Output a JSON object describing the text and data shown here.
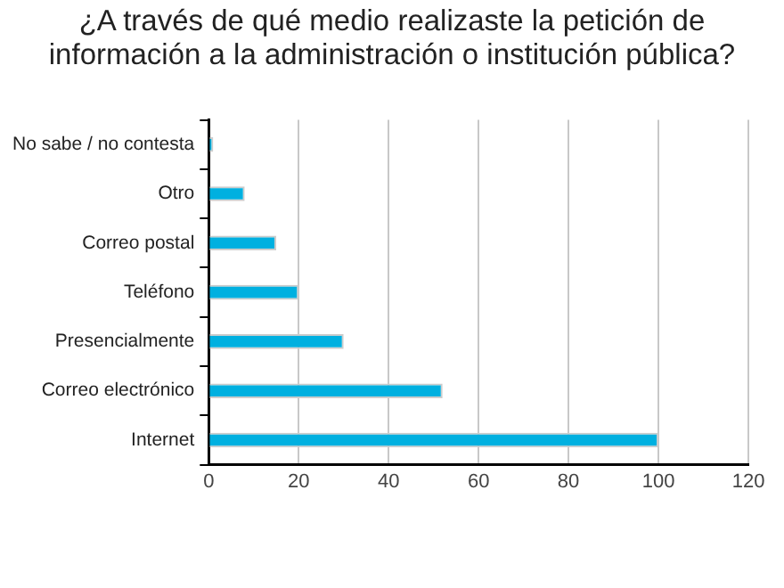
{
  "chart_data": {
    "type": "bar",
    "title": "¿A través de qué medio realizaste la petición de información a la administración o institución pública?",
    "orientation": "horizontal",
    "categories": [
      "No sabe / no contesta",
      "Otro",
      "Correo postal",
      "Teléfono",
      "Presencialmente",
      "Correo electrónico",
      "Internet"
    ],
    "values": [
      1,
      8,
      15,
      20,
      30,
      52,
      100
    ],
    "color": "#00b0e0",
    "xlim": [
      0,
      120
    ],
    "xticks": [
      0,
      20,
      40,
      60,
      80,
      100,
      120
    ],
    "grid": "x"
  }
}
